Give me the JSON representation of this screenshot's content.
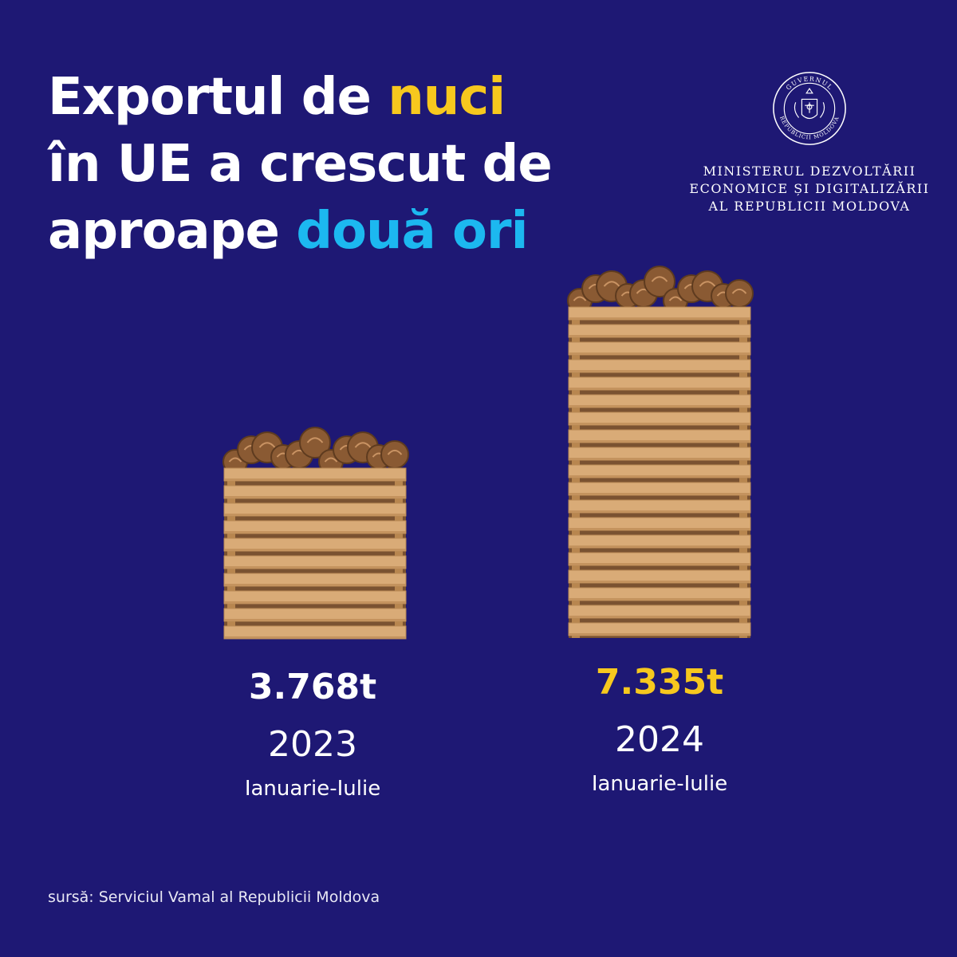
{
  "headline": {
    "line1_pre": "Exportul de ",
    "line1_highlight": "nuci",
    "line2": "în UE a crescut de",
    "line3_pre": "aproape ",
    "line3_highlight": "două ori"
  },
  "ministry": {
    "seal_text_top": "GUVERNUL",
    "seal_text_bottom": "REPUBLICII MOLDOVA",
    "name_line1": "Ministerul Dezvoltării",
    "name_line2": "Economice și Digitalizării",
    "name_line3": "al Republicii Moldova"
  },
  "colors": {
    "background": "#1e1874",
    "yellow": "#f7c81e",
    "cyan": "#1cb8f0",
    "crate": "#d9ab77",
    "nut": "#8a5a33"
  },
  "chart_data": {
    "type": "bar",
    "categories": [
      "2023",
      "2024"
    ],
    "period": "Ianuarie-Iulie",
    "values": [
      3768,
      7335
    ],
    "value_labels": [
      "3.768t",
      "7.335t"
    ],
    "unit": "t",
    "ylim": [
      0,
      7335
    ]
  },
  "source": "sursă: Serviciul Vamal al Republicii Moldova"
}
